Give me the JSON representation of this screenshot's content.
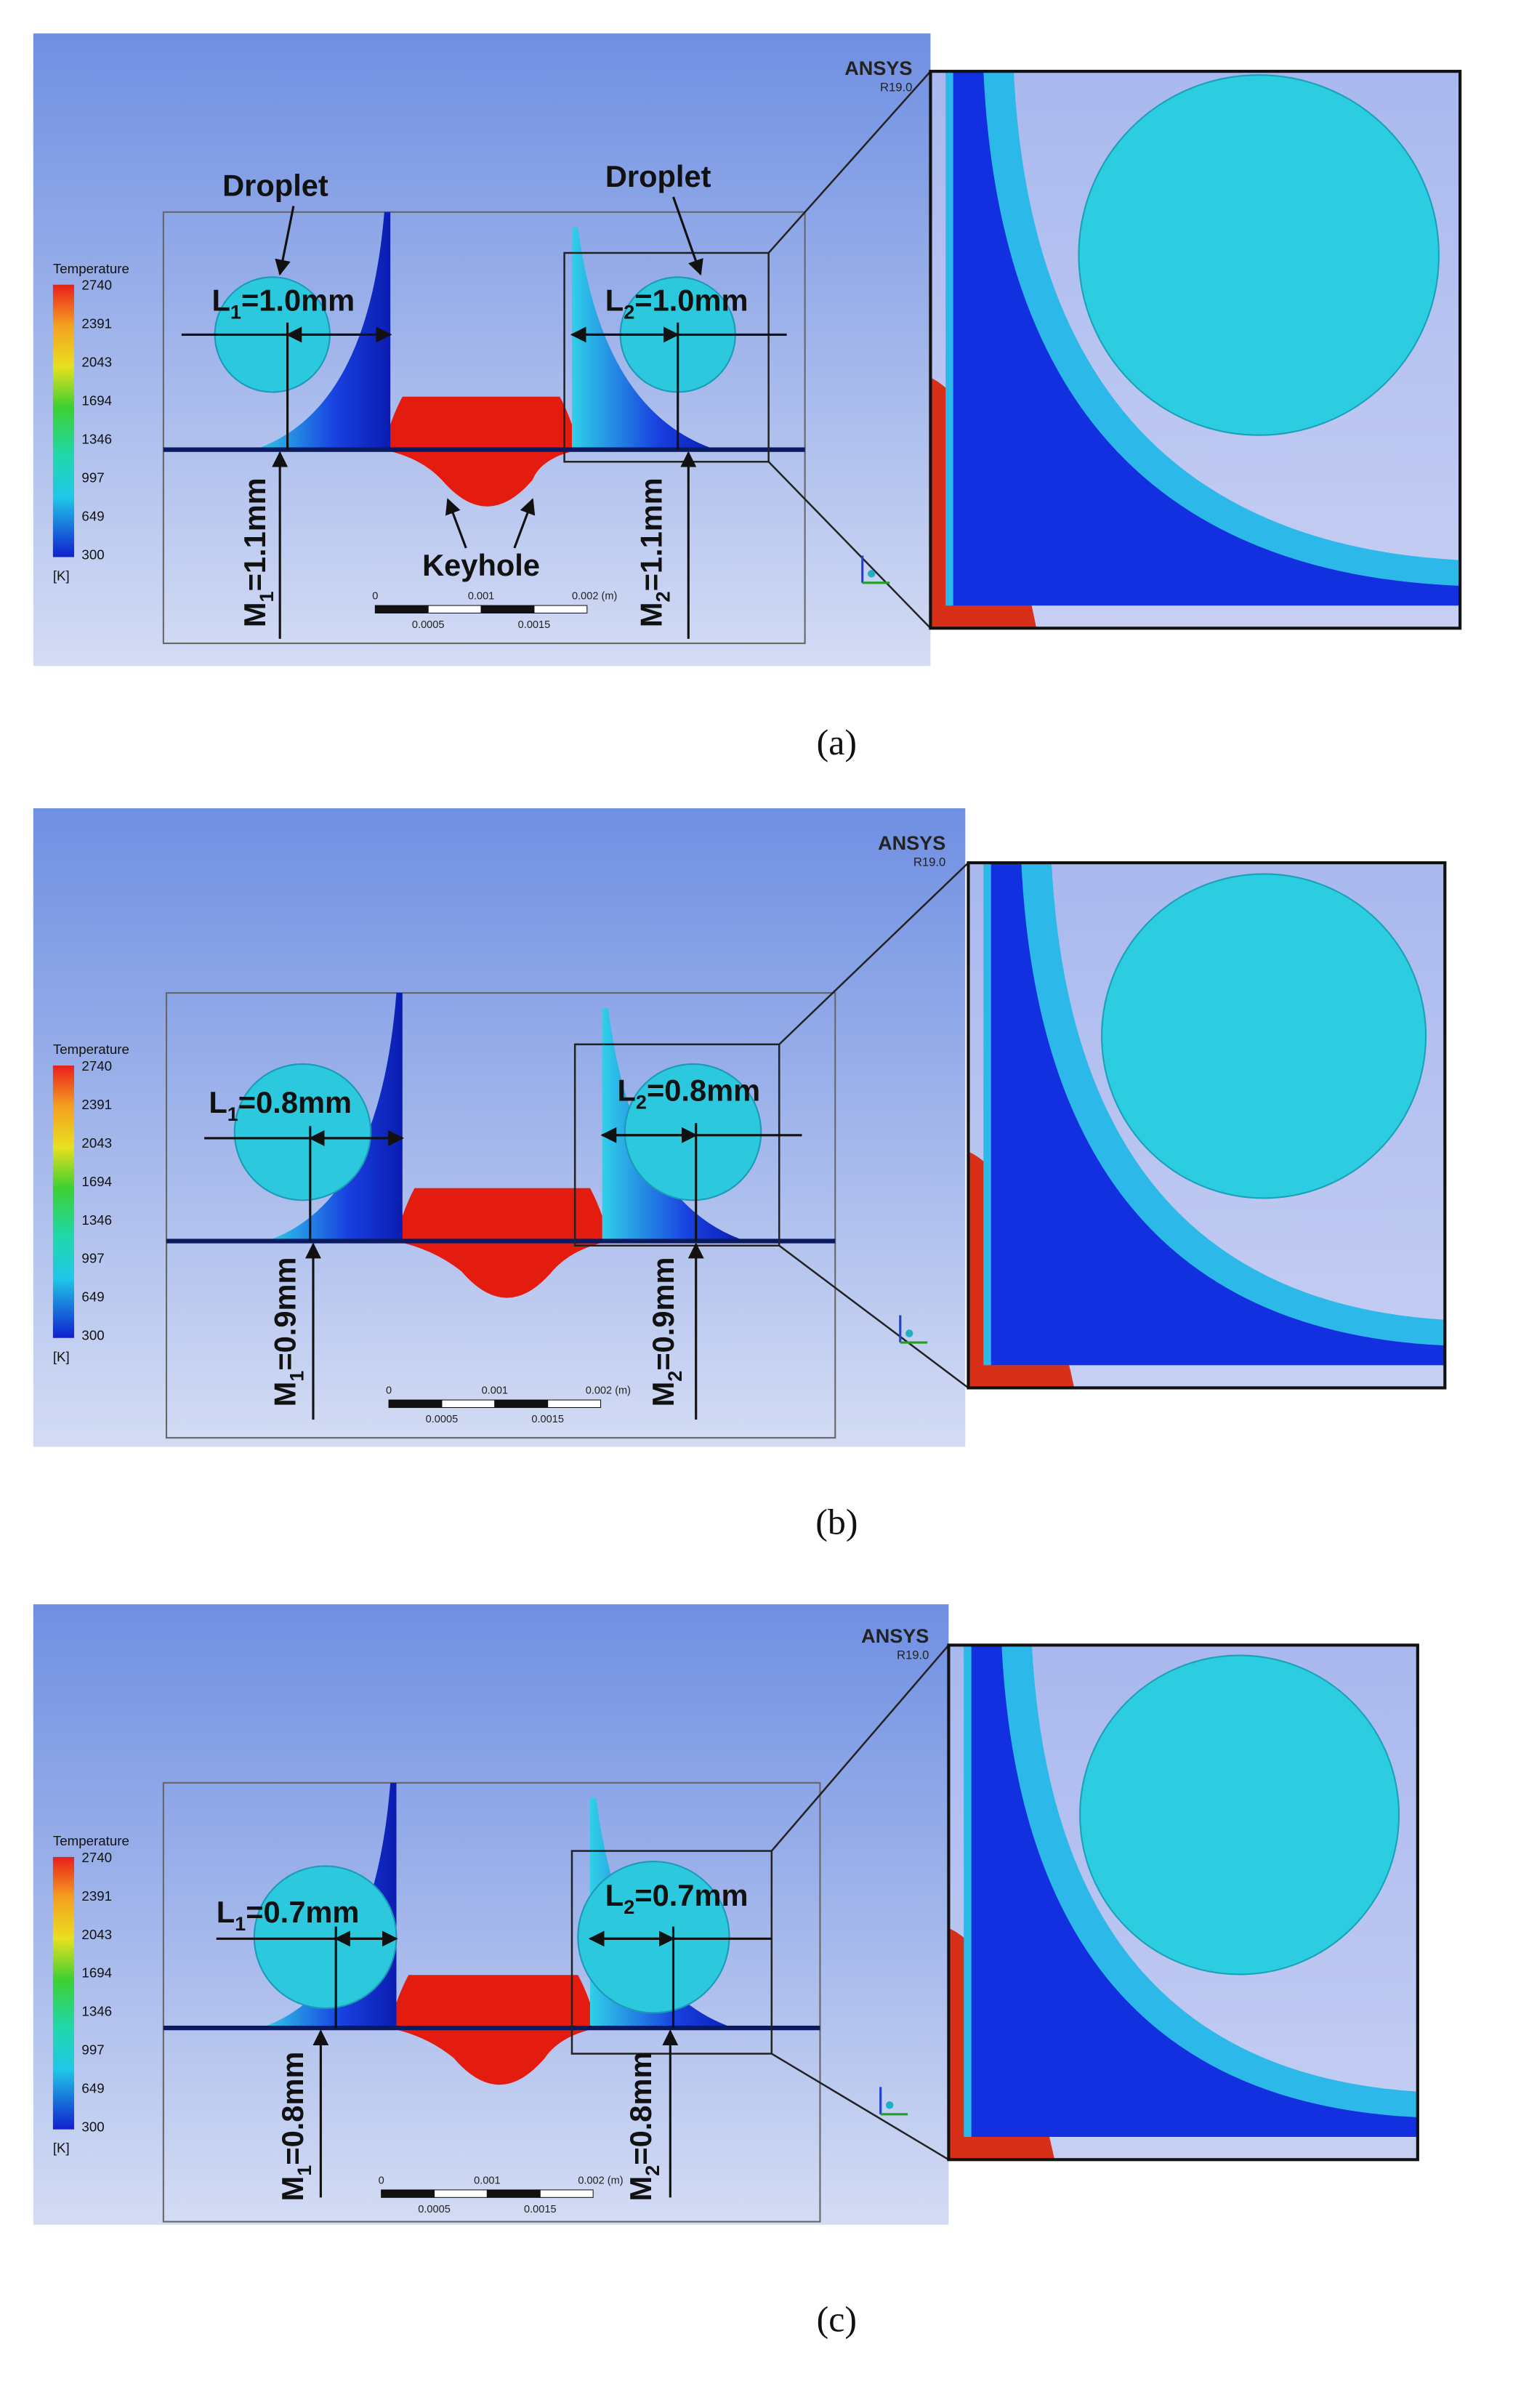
{
  "panels": [
    {
      "caption": "(a)",
      "brand": "ANSYS",
      "version": "R19.0",
      "legend": {
        "title": "Temperature",
        "ticks": [
          2740,
          2391,
          2043,
          1694,
          1346,
          997,
          649,
          300
        ],
        "unit": "[K]"
      },
      "scale_labels": [
        "0",
        "0.001",
        "0.002 (m)",
        "0.0005",
        "0.0015"
      ],
      "droplet_labels": [
        "Droplet",
        "Droplet"
      ],
      "keyhole_label": "Keyhole",
      "L1": {
        "symbol": "L",
        "sub": "1",
        "value": "=1.0mm"
      },
      "L2": {
        "symbol": "L",
        "sub": "2",
        "value": "=1.0mm"
      },
      "M1": {
        "symbol": "M",
        "sub": "1",
        "value": "=1.1mm"
      },
      "M2": {
        "symbol": "M",
        "sub": "2",
        "value": "=1.1mm"
      }
    },
    {
      "caption": "(b)",
      "brand": "ANSYS",
      "version": "R19.0",
      "legend": {
        "title": "Temperature",
        "ticks": [
          2740,
          2391,
          2043,
          1694,
          1346,
          997,
          649,
          300
        ],
        "unit": "[K]"
      },
      "scale_labels": [
        "0",
        "0.001",
        "0.002 (m)",
        "0.0005",
        "0.0015"
      ],
      "L1": {
        "symbol": "L",
        "sub": "1",
        "value": "=0.8mm"
      },
      "L2": {
        "symbol": "L",
        "sub": "2",
        "value": "=0.8mm"
      },
      "M1": {
        "symbol": "M",
        "sub": "1",
        "value": "=0.9mm"
      },
      "M2": {
        "symbol": "M",
        "sub": "2",
        "value": "=0.9mm"
      }
    },
    {
      "caption": "(c)",
      "brand": "ANSYS",
      "version": "R19.0",
      "legend": {
        "title": "Temperature",
        "ticks": [
          2740,
          2391,
          2043,
          1694,
          1346,
          997,
          649,
          300
        ],
        "unit": "[K]"
      },
      "scale_labels": [
        "0",
        "0.001",
        "0.002 (m)",
        "0.0005",
        "0.0015"
      ],
      "L1": {
        "symbol": "L",
        "sub": "1",
        "value": "=0.7mm"
      },
      "L2": {
        "symbol": "L",
        "sub": "2",
        "value": "=0.7mm"
      },
      "M1": {
        "symbol": "M",
        "sub": "1",
        "value": "=0.8mm"
      },
      "M2": {
        "symbol": "M",
        "sub": "2",
        "value": "=0.8mm"
      }
    }
  ]
}
